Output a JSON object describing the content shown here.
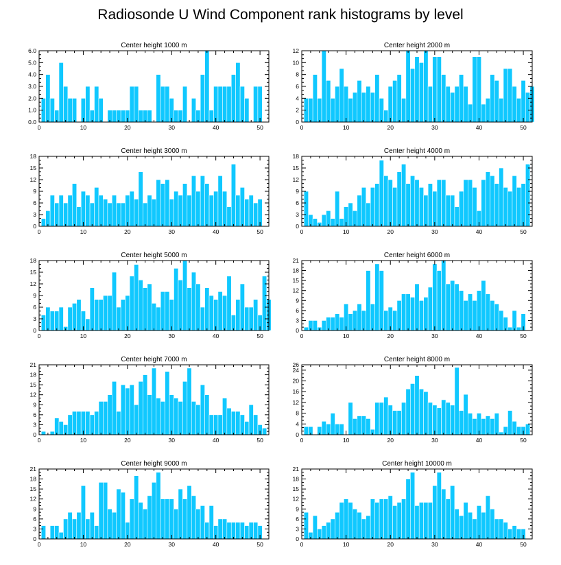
{
  "figure": {
    "title": "Radiosonde U Wind Component rank histograms by level"
  },
  "chart_data": [
    {
      "type": "bar",
      "title": "Center height 1000 m",
      "xlim": [
        0,
        52
      ],
      "ylim": [
        0,
        6
      ],
      "xticks": [
        0,
        10,
        20,
        30,
        40,
        50
      ],
      "yticks": [
        0.0,
        1.0,
        2.0,
        3.0,
        4.0,
        5.0,
        6.0
      ],
      "ytick_labels": [
        "0.0",
        "1.0",
        "2.0",
        "3.0",
        "4.0",
        "5.0",
        "6.0"
      ],
      "values": [
        2,
        4,
        2,
        1,
        5,
        3,
        2,
        2,
        0,
        2,
        3,
        1,
        3,
        2,
        0,
        1,
        1,
        1,
        1,
        1,
        3,
        3,
        1,
        1,
        1,
        0,
        4,
        3,
        3,
        2,
        1,
        1,
        3,
        0,
        2,
        1,
        4,
        6,
        1,
        3,
        3,
        3,
        3,
        4,
        5,
        3,
        2,
        0,
        3,
        3
      ]
    },
    {
      "type": "bar",
      "title": "Center height 2000 m",
      "xlim": [
        0,
        52
      ],
      "ylim": [
        0,
        12
      ],
      "xticks": [
        0,
        10,
        20,
        30,
        40,
        50
      ],
      "yticks": [
        0,
        2,
        4,
        6,
        8,
        10,
        12
      ],
      "ytick_labels": [
        "0",
        "2",
        "4",
        "6",
        "8",
        "10",
        "12"
      ],
      "values": [
        4,
        4,
        8,
        4,
        12,
        7,
        4,
        6,
        9,
        6,
        4,
        5,
        7,
        5,
        6,
        5,
        8,
        4,
        2,
        6,
        7,
        8,
        4,
        12,
        9,
        11,
        10,
        12,
        6,
        11,
        11,
        8,
        6,
        5,
        6,
        8,
        6,
        3,
        11,
        11,
        3,
        4,
        8,
        7,
        4,
        9,
        9,
        6,
        4,
        7,
        5,
        6
      ]
    },
    {
      "type": "bar",
      "title": "Center height 3000 m",
      "xlim": [
        0,
        52
      ],
      "ylim": [
        0,
        18
      ],
      "xticks": [
        0,
        10,
        20,
        30,
        40,
        50
      ],
      "yticks": [
        0,
        3,
        6,
        9,
        12,
        15,
        18
      ],
      "ytick_labels": [
        "0",
        "3",
        "6",
        "9",
        "12",
        "15",
        "18"
      ],
      "values": [
        2,
        4,
        8,
        6,
        8,
        6,
        8,
        11,
        5,
        9,
        8,
        6,
        10,
        8,
        7,
        6,
        8,
        6,
        6,
        8,
        9,
        7,
        14,
        6,
        8,
        7,
        12,
        11,
        12,
        7,
        9,
        8,
        11,
        8,
        13,
        9,
        13,
        11,
        8,
        9,
        13,
        9,
        5,
        16,
        8,
        10,
        7,
        8,
        6,
        7
      ]
    },
    {
      "type": "bar",
      "title": "Center height 4000 m",
      "xlim": [
        0,
        52
      ],
      "ylim": [
        0,
        18
      ],
      "xticks": [
        0,
        10,
        20,
        30,
        40,
        50
      ],
      "yticks": [
        0,
        3,
        6,
        9,
        12,
        15,
        18
      ],
      "ytick_labels": [
        "0",
        "3",
        "6",
        "9",
        "12",
        "15",
        "18"
      ],
      "values": [
        9,
        3,
        2,
        1,
        3,
        4,
        2,
        9,
        2,
        5,
        6,
        4,
        8,
        10,
        6,
        10,
        11,
        17,
        13,
        12,
        10,
        14,
        16,
        11,
        13,
        12,
        10,
        8,
        11,
        9,
        12,
        12,
        8,
        8,
        5,
        9,
        12,
        12,
        10,
        4,
        12,
        14,
        13,
        11,
        15,
        10,
        9,
        13,
        10,
        11,
        16
      ]
    },
    {
      "type": "bar",
      "title": "Center height 5000 m",
      "xlim": [
        0,
        52
      ],
      "ylim": [
        0,
        18
      ],
      "xticks": [
        0,
        10,
        20,
        30,
        40,
        50
      ],
      "yticks": [
        0,
        3,
        6,
        9,
        12,
        15,
        18
      ],
      "ytick_labels": [
        "0",
        "3",
        "6",
        "9",
        "12",
        "15",
        "18"
      ],
      "values": [
        4,
        6,
        5,
        5,
        6,
        1,
        6,
        7,
        8,
        5,
        3,
        11,
        8,
        8,
        9,
        9,
        15,
        6,
        8,
        9,
        14,
        17,
        13,
        11,
        12,
        7,
        6,
        10,
        10,
        8,
        16,
        13,
        18,
        11,
        15,
        12,
        6,
        11,
        9,
        8,
        10,
        9,
        14,
        4,
        8,
        12,
        6,
        6,
        8,
        4,
        14,
        8
      ]
    },
    {
      "type": "bar",
      "title": "Center height 6000 m",
      "xlim": [
        0,
        52
      ],
      "ylim": [
        0,
        21
      ],
      "xticks": [
        0,
        10,
        20,
        30,
        40,
        50
      ],
      "yticks": [
        0,
        3,
        6,
        9,
        12,
        15,
        18,
        21
      ],
      "ytick_labels": [
        "0",
        "3",
        "6",
        "9",
        "12",
        "15",
        "18",
        "21"
      ],
      "values": [
        1,
        3,
        3,
        1,
        3,
        4,
        4,
        5,
        4,
        8,
        5,
        6,
        8,
        6,
        18,
        8,
        20,
        18,
        6,
        7,
        6,
        9,
        11,
        11,
        10,
        14,
        9,
        10,
        13,
        20,
        18,
        21,
        14,
        15,
        14,
        12,
        9,
        11,
        9,
        12,
        15,
        11,
        9,
        8,
        6,
        4,
        1,
        6,
        1,
        5
      ]
    },
    {
      "type": "bar",
      "title": "Center height 7000 m",
      "xlim": [
        0,
        52
      ],
      "ylim": [
        0,
        21
      ],
      "xticks": [
        0,
        10,
        20,
        30,
        40,
        50
      ],
      "yticks": [
        0,
        3,
        6,
        9,
        12,
        15,
        18,
        21
      ],
      "ytick_labels": [
        "0",
        "3",
        "6",
        "9",
        "12",
        "15",
        "18",
        "21"
      ],
      "values": [
        1,
        0,
        1,
        5,
        4,
        3,
        6,
        7,
        7,
        7,
        7,
        6,
        7,
        10,
        10,
        12,
        16,
        7,
        15,
        14,
        15,
        9,
        16,
        18,
        12,
        20,
        11,
        10,
        19,
        12,
        11,
        10,
        16,
        20,
        10,
        9,
        15,
        12,
        6,
        6,
        6,
        11,
        8,
        7,
        7,
        6,
        4,
        9,
        6,
        3,
        2
      ]
    },
    {
      "type": "bar",
      "title": "Center height 8000 m",
      "xlim": [
        0,
        52
      ],
      "ylim": [
        0,
        26
      ],
      "xticks": [
        0,
        10,
        20,
        30,
        40,
        50
      ],
      "yticks": [
        0,
        4,
        8,
        12,
        16,
        20,
        24,
        26
      ],
      "ytick_labels": [
        "0",
        "4",
        "8",
        "12",
        "16",
        "20",
        "24",
        "26"
      ],
      "values": [
        3,
        3,
        0,
        3,
        5,
        4,
        8,
        4,
        4,
        0,
        12,
        6,
        7,
        7,
        6,
        2,
        12,
        12,
        14,
        11,
        9,
        9,
        12,
        17,
        19,
        22,
        17,
        16,
        12,
        11,
        10,
        13,
        12,
        11,
        25,
        9,
        15,
        8,
        6,
        8,
        6,
        7,
        6,
        8,
        1,
        3,
        9,
        5,
        3,
        3,
        4
      ]
    },
    {
      "type": "bar",
      "title": "Center height 9000 m",
      "xlim": [
        0,
        52
      ],
      "ylim": [
        0,
        21
      ],
      "xticks": [
        0,
        10,
        20,
        30,
        40,
        50
      ],
      "yticks": [
        0,
        3,
        6,
        9,
        12,
        15,
        18,
        21
      ],
      "ytick_labels": [
        "0",
        "3",
        "6",
        "9",
        "12",
        "15",
        "18",
        "21"
      ],
      "values": [
        4,
        0,
        4,
        4,
        2,
        6,
        8,
        6,
        8,
        16,
        6,
        8,
        4,
        17,
        17,
        9,
        8,
        15,
        14,
        5,
        12,
        19,
        11,
        9,
        13,
        17,
        20,
        12,
        12,
        12,
        9,
        15,
        12,
        16,
        13,
        9,
        10,
        5,
        10,
        4,
        6,
        6,
        5,
        5,
        5,
        5,
        4,
        5,
        5,
        4
      ]
    },
    {
      "type": "bar",
      "title": "Center height 10000 m",
      "xlim": [
        0,
        52
      ],
      "ylim": [
        0,
        21
      ],
      "xticks": [
        0,
        10,
        20,
        30,
        40,
        50
      ],
      "yticks": [
        0,
        3,
        6,
        9,
        12,
        15,
        18,
        21
      ],
      "ytick_labels": [
        "0",
        "3",
        "6",
        "9",
        "12",
        "15",
        "18",
        "21"
      ],
      "values": [
        8,
        2,
        7,
        3,
        4,
        5,
        6,
        8,
        11,
        12,
        11,
        9,
        8,
        6,
        7,
        12,
        11,
        12,
        12,
        13,
        10,
        11,
        12,
        18,
        20,
        10,
        11,
        11,
        11,
        16,
        20,
        15,
        12,
        16,
        9,
        7,
        11,
        8,
        6,
        10,
        8,
        13,
        9,
        6,
        6,
        5,
        3,
        4,
        3,
        3
      ]
    }
  ]
}
